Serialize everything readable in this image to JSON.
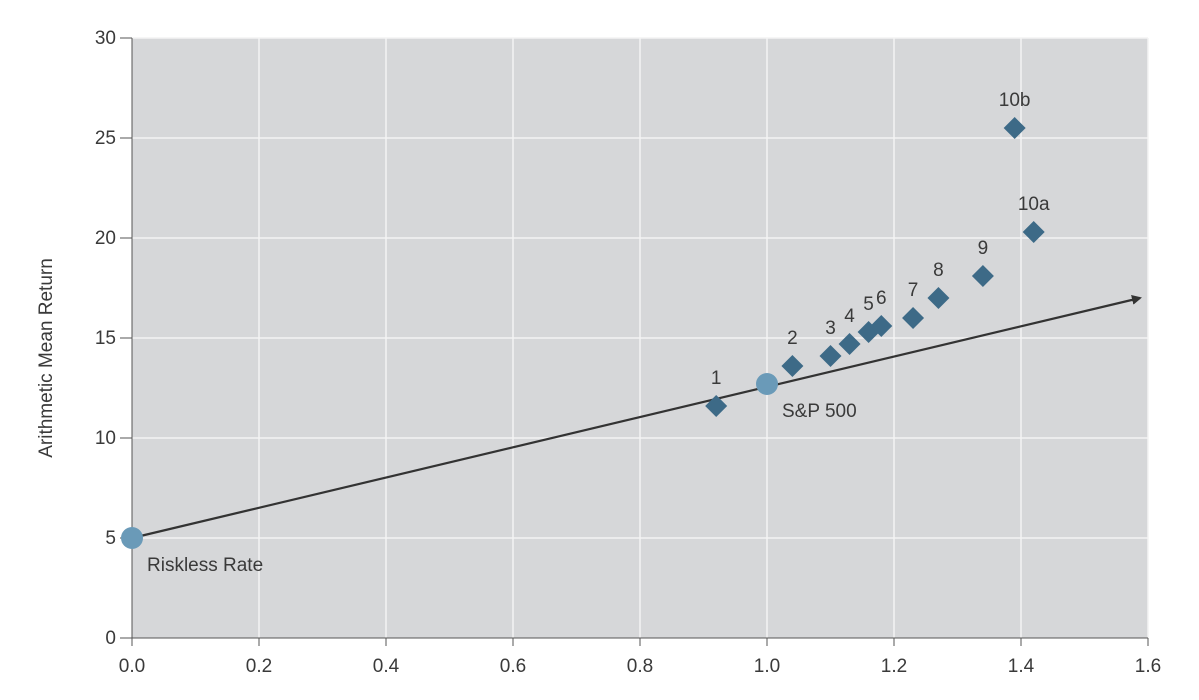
{
  "chart_data": {
    "type": "scatter",
    "title": "",
    "xlabel": "",
    "ylabel": "Arithmetic Mean Return",
    "xlim": [
      0,
      1.6
    ],
    "ylim": [
      0,
      30
    ],
    "x_ticks": [
      "0.0",
      "0.2",
      "0.4",
      "0.6",
      "0.8",
      "1.0",
      "1.2",
      "1.4",
      "1.6"
    ],
    "y_ticks": [
      "0",
      "5",
      "10",
      "15",
      "20",
      "25",
      "30"
    ],
    "grid": true,
    "colors": {
      "plot_background": "#d6d7d9",
      "grid": "#f4f4f4",
      "diamond": "#3d6a87",
      "circle": "#6a9ab8",
      "line": "#333333"
    },
    "portfolios": [
      {
        "label": "1",
        "x": 0.92,
        "y": 11.6
      },
      {
        "label": "2",
        "x": 1.04,
        "y": 13.6
      },
      {
        "label": "3",
        "x": 1.1,
        "y": 14.1
      },
      {
        "label": "4",
        "x": 1.13,
        "y": 14.7
      },
      {
        "label": "5",
        "x": 1.16,
        "y": 15.3
      },
      {
        "label": "6",
        "x": 1.18,
        "y": 15.6
      },
      {
        "label": "7",
        "x": 1.23,
        "y": 16.0
      },
      {
        "label": "8",
        "x": 1.27,
        "y": 17.0
      },
      {
        "label": "9",
        "x": 1.34,
        "y": 18.1
      },
      {
        "label": "10a",
        "x": 1.42,
        "y": 20.3
      },
      {
        "label": "10b",
        "x": 1.39,
        "y": 25.5
      }
    ],
    "reference_points": [
      {
        "label": "Riskless Rate",
        "x": 0.0,
        "y": 5.0
      },
      {
        "label": "S&P 500",
        "x": 1.0,
        "y": 12.7
      }
    ],
    "security_market_line": {
      "x": [
        0.0,
        1.6
      ],
      "y": [
        5.0,
        17.0
      ]
    }
  }
}
